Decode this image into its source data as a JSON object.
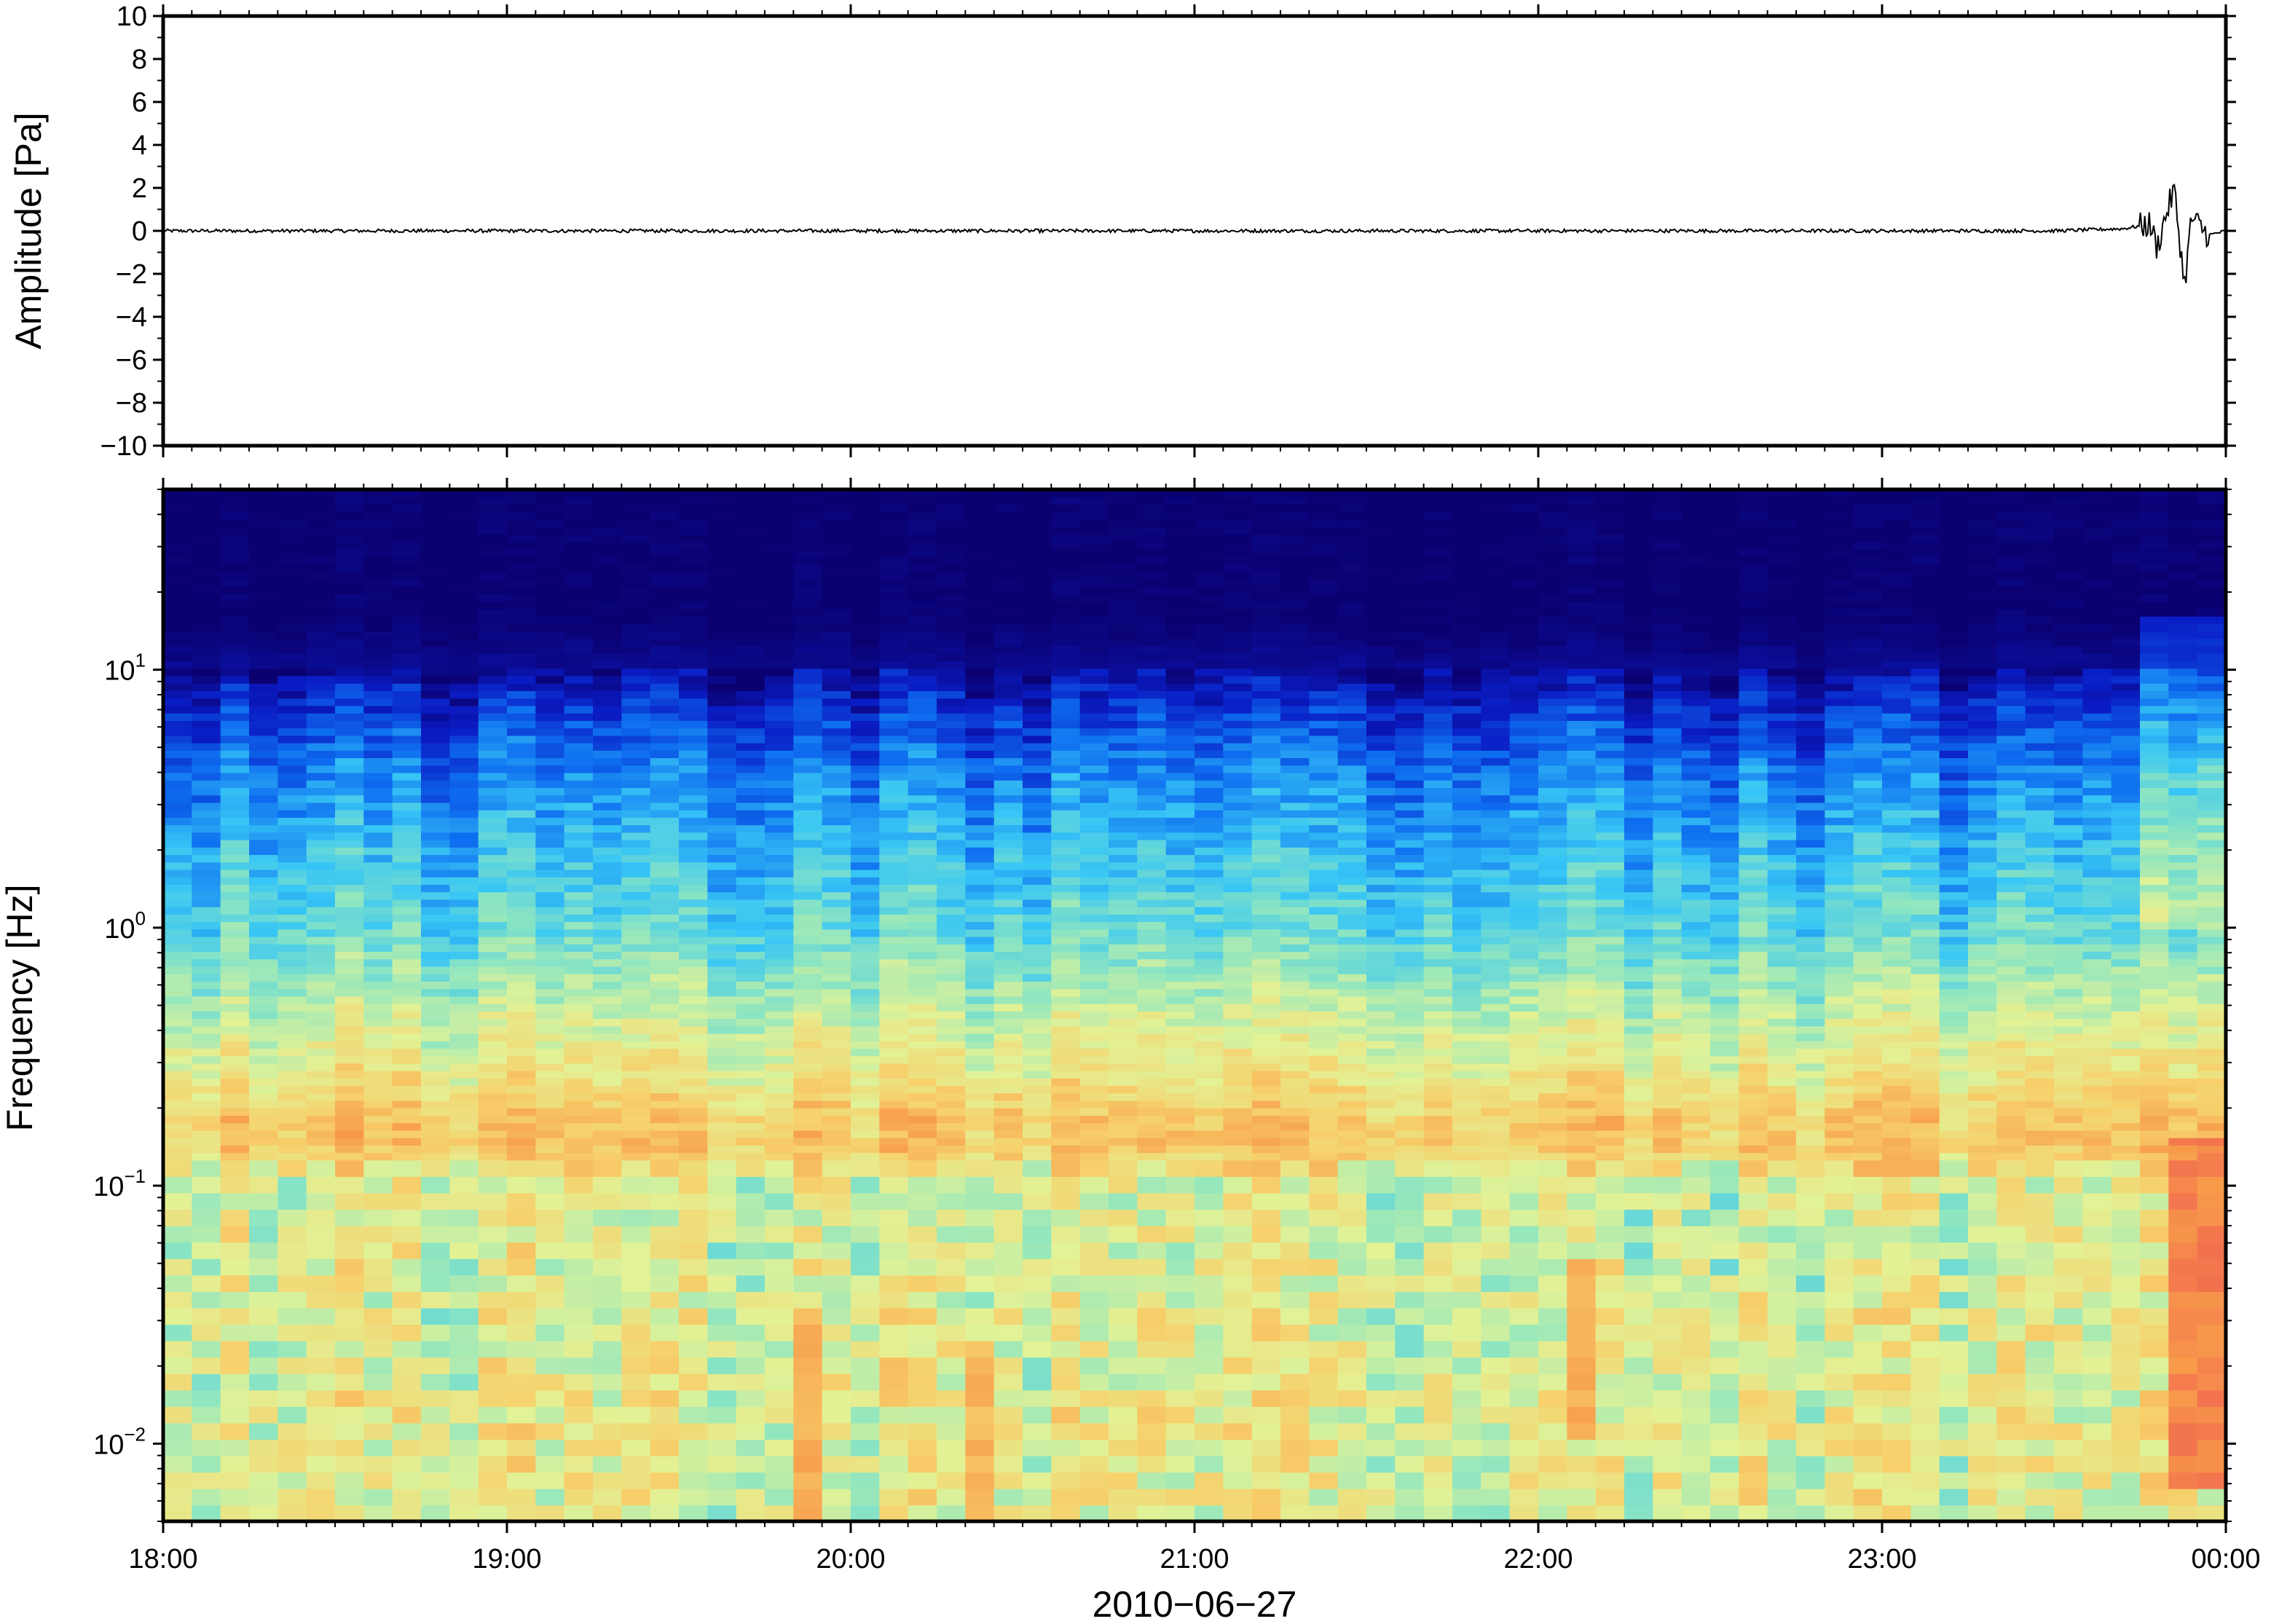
{
  "chart_data": [
    {
      "type": "line",
      "ylabel": "Amplitude [Pa]",
      "ylim": [
        -10,
        10
      ],
      "yticks": [
        10,
        8,
        6,
        4,
        2,
        0,
        -2,
        -4,
        -6,
        -8,
        -10
      ],
      "ytick_labels": [
        "10",
        "8",
        "6",
        "4",
        "2",
        "0",
        "−2",
        "−4",
        "−6",
        "−8",
        "−10"
      ],
      "x_range": [
        "18:00",
        "00:00"
      ],
      "series": [
        {
          "description_free": true,
          "x_hours": [
            18.0,
            23.5,
            23.7,
            23.78,
            23.8,
            23.83,
            23.85,
            23.88,
            23.9,
            23.95,
            24.0
          ],
          "y": [
            0.0,
            0.0,
            0.1,
            0.3,
            -0.8,
            1.0,
            1.9,
            -2.5,
            0.6,
            -0.2,
            0.0
          ],
          "baseline_noise": 0.08
        }
      ],
      "line_color": "#000000"
    },
    {
      "type": "heatmap",
      "ylabel": "Frequency [Hz]",
      "xlabel": "2010−06−27",
      "y_scale": "log",
      "ylim": [
        0.005,
        50
      ],
      "yticks": [
        {
          "value": 10,
          "base": "10",
          "exp": "1"
        },
        {
          "value": 1,
          "base": "10",
          "exp": "0"
        },
        {
          "value": 0.1,
          "base": "10",
          "exp": "−1"
        },
        {
          "value": 0.01,
          "base": "10",
          "exp": "−2"
        }
      ],
      "xticks": [
        "18:00",
        "19:00",
        "20:00",
        "21:00",
        "22:00",
        "23:00",
        "00:00"
      ],
      "x_range_hours": [
        18,
        24
      ],
      "colormap": [
        "#0b0070",
        "#0a1cc4",
        "#0e6ef0",
        "#37c6f5",
        "#8fe6c0",
        "#e2f296",
        "#f7cf6a",
        "#f79a4a",
        "#ee4b52"
      ],
      "power_profile": {
        "log10_freq": [
          1.7,
          1.2,
          1.0,
          0.85,
          0.6,
          0.3,
          0.0,
          -0.3,
          -0.6,
          -0.75,
          -0.85,
          -1.0,
          -1.5,
          -2.0,
          -2.3
        ],
        "level": [
          0.0,
          0.0,
          0.05,
          0.15,
          0.27,
          0.36,
          0.43,
          0.56,
          0.68,
          0.76,
          0.76,
          0.6,
          0.62,
          0.63,
          0.62
        ]
      },
      "hot_spots": [
        {
          "hours": [
            19.8,
            19.95
          ],
          "log10_freq": [
            -2.3,
            -1.5
          ],
          "level": 0.82
        },
        {
          "hours": [
            20.3,
            20.45
          ],
          "log10_freq": [
            -2.3,
            -1.6
          ],
          "level": 0.8
        },
        {
          "hours": [
            22.05,
            22.15
          ],
          "log10_freq": [
            -2.0,
            -1.3
          ],
          "level": 0.82
        },
        {
          "hours": [
            23.8,
            23.98
          ],
          "log10_freq": [
            -2.2,
            -0.8
          ],
          "level": 0.9
        }
      ]
    }
  ]
}
